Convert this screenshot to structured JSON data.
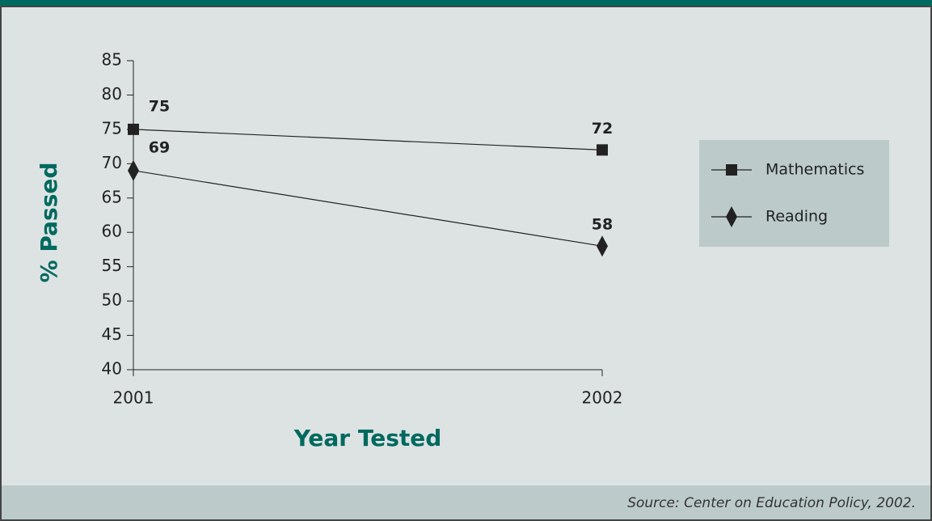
{
  "chart_data": {
    "type": "line",
    "x_label": "Year Tested",
    "y_label": "% Passed",
    "categories": [
      "2001",
      "2002"
    ],
    "series": [
      {
        "name": "Mathematics",
        "color": "#222222",
        "marker": "square",
        "values": [
          75,
          72
        ]
      },
      {
        "name": "Reading",
        "color": "#222222",
        "marker": "diamond",
        "values": [
          69,
          58
        ]
      }
    ],
    "ylim": [
      40,
      85
    ],
    "yticks": [
      40,
      45,
      50,
      55,
      60,
      65,
      70,
      75,
      80,
      85
    ],
    "legend": "right",
    "source": "Source: Center on Education Policy, 2002."
  }
}
